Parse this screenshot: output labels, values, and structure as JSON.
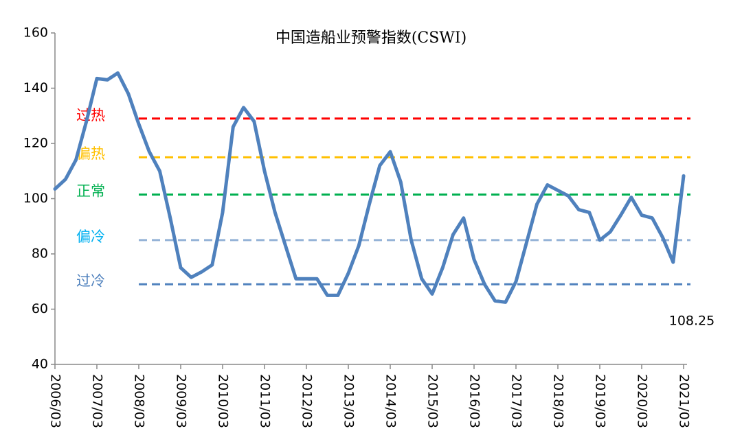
{
  "chart_data": {
    "type": "line",
    "title": "中国造船业预警指数(CSWI)",
    "x": [
      2006,
      2006.25,
      2006.5,
      2006.75,
      2007,
      2007.25,
      2007.5,
      2007.75,
      2008,
      2008.25,
      2008.5,
      2008.75,
      2009,
      2009.25,
      2009.5,
      2009.75,
      2010,
      2010.25,
      2010.5,
      2010.75,
      2011,
      2011.25,
      2011.5,
      2011.75,
      2012,
      2012.25,
      2012.5,
      2012.75,
      2013,
      2013.25,
      2013.5,
      2013.75,
      2014,
      2014.25,
      2014.5,
      2014.75,
      2015,
      2015.25,
      2015.5,
      2015.75,
      2016,
      2016.25,
      2016.5,
      2016.75,
      2017,
      2017.25,
      2017.5,
      2017.75,
      2018,
      2018.25,
      2018.5,
      2018.75,
      2019,
      2019.25,
      2019.5,
      2019.75,
      2020,
      2020.25,
      2020.5,
      2020.75,
      2021
    ],
    "series": [
      {
        "name": "CSWI",
        "color": "#4f81bd",
        "values": [
          103.5,
          107,
          114,
          128,
          143.5,
          143,
          145.5,
          138,
          127,
          117,
          110,
          93,
          75,
          71.5,
          73.5,
          76,
          95,
          126,
          133,
          128,
          110,
          95,
          83,
          71,
          71,
          71,
          65,
          65,
          73,
          83,
          98,
          112,
          117,
          106,
          85,
          71,
          65.5,
          75,
          87,
          93,
          78,
          69,
          63,
          62.5,
          70,
          84,
          98,
          105,
          103,
          101,
          96,
          95,
          85,
          88,
          94,
          100.5,
          94,
          93,
          86,
          77,
          108.25
        ]
      }
    ],
    "thresholds": [
      {
        "label": "过热",
        "value": 129,
        "color": "#ff0000"
      },
      {
        "label": "偏热",
        "value": 115,
        "color": "#ffc000"
      },
      {
        "label": "正常",
        "value": 101.5,
        "color": "#00b050"
      },
      {
        "label": "偏冷",
        "value": 85,
        "color": "#95b3d7",
        "text_color": "#00b0f0"
      },
      {
        "label": "过冷",
        "value": 69,
        "color": "#4f81bd"
      }
    ],
    "annotation": "108.25",
    "xlim": [
      2006,
      2021
    ],
    "xticks": [
      {
        "value": 2006,
        "label": "2006/03"
      },
      {
        "value": 2007,
        "label": "2007/03"
      },
      {
        "value": 2008,
        "label": "2008/03"
      },
      {
        "value": 2009,
        "label": "2009/03"
      },
      {
        "value": 2010,
        "label": "2010/03"
      },
      {
        "value": 2011,
        "label": "2011/03"
      },
      {
        "value": 2012,
        "label": "2012/03"
      },
      {
        "value": 2013,
        "label": "2013/03"
      },
      {
        "value": 2014,
        "label": "2014/03"
      },
      {
        "value": 2015,
        "label": "2015/03"
      },
      {
        "value": 2016,
        "label": "2016/03"
      },
      {
        "value": 2017,
        "label": "2017/03"
      },
      {
        "value": 2018,
        "label": "2018/03"
      },
      {
        "value": 2019,
        "label": "2019/03"
      },
      {
        "value": 2020,
        "label": "2020/03"
      },
      {
        "value": 2021,
        "label": "2021/03"
      }
    ],
    "ylim": [
      40,
      160
    ],
    "yticks": [
      40,
      60,
      80,
      100,
      120,
      140,
      160
    ]
  }
}
